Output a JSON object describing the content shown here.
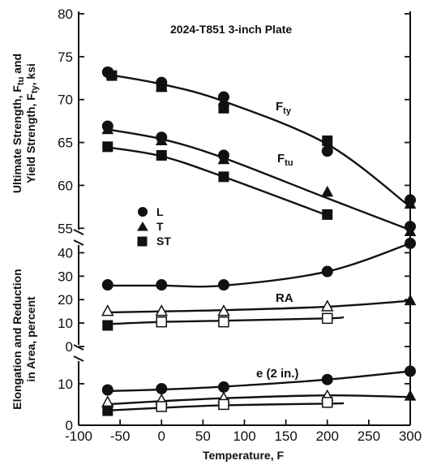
{
  "chart_data": {
    "type": "scatter",
    "title": "2024-T851 3-inch Plate",
    "xlabel": "Temperature, F",
    "x_ticks": [
      "-100",
      "-50",
      "0",
      "50",
      "100",
      "150",
      "200",
      "250",
      "300"
    ],
    "xlim": [
      -100,
      300
    ],
    "legend": {
      "placement": "left",
      "entries": [
        {
          "marker": "circle",
          "label": "L"
        },
        {
          "marker": "triangle",
          "label": "T"
        },
        {
          "marker": "square",
          "label": "ST"
        }
      ]
    },
    "panels": [
      {
        "name": "strength",
        "ylabel_lines": [
          "Ultimate Strength, F",
          "Yield Strength, F"
        ],
        "ylabel_parts": {
          "l1_main": "Ultimate Strength, F",
          "l1_sub": "tu",
          "l1_tail": " and",
          "l2_main": "Yield Strength, F",
          "l2_sub": "ty",
          "l2_tail": ", ksi"
        },
        "ylim": [
          52,
          80
        ],
        "y_ticks": [
          "55",
          "60",
          "65",
          "70",
          "75",
          "80"
        ],
        "curves": [
          {
            "name": "Fty",
            "label_main": "F",
            "label_sub": "ty",
            "x": [
              -70,
              0,
              75,
              200,
              300
            ],
            "y": [
              73.0,
              71.8,
              69.8,
              64.8,
              57.5
            ]
          },
          {
            "name": "Ftu",
            "label_main": "F",
            "label_sub": "tu",
            "x": [
              -70,
              0,
              75,
              200,
              300
            ],
            "y": [
              66.6,
              65.4,
              63.2,
              58.5,
              54.8
            ]
          },
          {
            "name": "",
            "x": [
              -70,
              0,
              75,
              200
            ],
            "y": [
              64.5,
              63.4,
              61.0,
              56.5
            ]
          }
        ],
        "points": [
          {
            "marker": "circle",
            "fill": "solid",
            "x": -65,
            "y": 73.2
          },
          {
            "marker": "circle",
            "fill": "solid",
            "x": 0,
            "y": 72.0
          },
          {
            "marker": "circle",
            "fill": "solid",
            "x": 75,
            "y": 70.3
          },
          {
            "marker": "circle",
            "fill": "solid",
            "x": 200,
            "y": 64.0
          },
          {
            "marker": "circle",
            "fill": "solid",
            "x": 300,
            "y": 58.3
          },
          {
            "marker": "triangle",
            "fill": "solid",
            "x": -60,
            "y": 73.0
          },
          {
            "marker": "triangle",
            "fill": "solid",
            "x": 0,
            "y": 71.5
          },
          {
            "marker": "triangle",
            "fill": "solid",
            "x": 75,
            "y": 69.8
          },
          {
            "marker": "triangle",
            "fill": "solid",
            "x": 300,
            "y": 57.8
          },
          {
            "marker": "square",
            "fill": "solid",
            "x": -60,
            "y": 72.8
          },
          {
            "marker": "square",
            "fill": "solid",
            "x": 0,
            "y": 71.5
          },
          {
            "marker": "square",
            "fill": "solid",
            "x": 75,
            "y": 69.0
          },
          {
            "marker": "square",
            "fill": "solid",
            "x": 200,
            "y": 65.2
          },
          {
            "marker": "circle",
            "fill": "solid",
            "x": -65,
            "y": 66.9
          },
          {
            "marker": "circle",
            "fill": "solid",
            "x": 0,
            "y": 65.6
          },
          {
            "marker": "circle",
            "fill": "solid",
            "x": 75,
            "y": 63.5
          },
          {
            "marker": "circle",
            "fill": "solid",
            "x": 300,
            "y": 55.2
          },
          {
            "marker": "triangle",
            "fill": "solid",
            "x": -65,
            "y": 66.5
          },
          {
            "marker": "triangle",
            "fill": "solid",
            "x": 0,
            "y": 65.2
          },
          {
            "marker": "triangle",
            "fill": "solid",
            "x": 75,
            "y": 63.0
          },
          {
            "marker": "triangle",
            "fill": "solid",
            "x": 200,
            "y": 59.2
          },
          {
            "marker": "triangle",
            "fill": "solid",
            "x": 300,
            "y": 54.6
          },
          {
            "marker": "square",
            "fill": "solid",
            "x": -65,
            "y": 64.5
          },
          {
            "marker": "square",
            "fill": "solid",
            "x": 0,
            "y": 63.5
          },
          {
            "marker": "square",
            "fill": "solid",
            "x": 75,
            "y": 61.0
          },
          {
            "marker": "square",
            "fill": "solid",
            "x": 200,
            "y": 56.6
          }
        ]
      },
      {
        "name": "elongation",
        "ylabel_lines": [
          "Elongation and Reduction",
          "in Area, percent"
        ],
        "ylim": [
          0,
          45
        ],
        "y_ticks": [
          "0",
          "10",
          "20",
          "30",
          "40"
        ],
        "curves": [
          {
            "name": "RA",
            "x": [
              -70,
              0,
              75,
              200,
              300
            ],
            "y": [
              26,
              26,
              26,
              32,
              44
            ]
          },
          {
            "name": "",
            "x": [
              -70,
              0,
              75,
              200,
              300
            ],
            "y": [
              14.5,
              15,
              15.5,
              17,
              19.5
            ]
          },
          {
            "name": "",
            "x": [
              -70,
              0,
              75,
              200,
              220
            ],
            "y": [
              9.5,
              10.5,
              11,
              12,
              12.5
            ]
          }
        ],
        "points": [
          {
            "marker": "circle",
            "fill": "solid",
            "x": -65,
            "y": 26.3
          },
          {
            "marker": "circle",
            "fill": "solid",
            "x": 0,
            "y": 26.3
          },
          {
            "marker": "circle",
            "fill": "solid",
            "x": 75,
            "y": 26.3
          },
          {
            "marker": "circle",
            "fill": "solid",
            "x": 200,
            "y": 32.0
          },
          {
            "marker": "circle",
            "fill": "solid",
            "x": 300,
            "y": 44.0
          },
          {
            "marker": "triangle",
            "fill": "open",
            "x": -65,
            "y": 15.0
          },
          {
            "marker": "triangle",
            "fill": "open",
            "x": 0,
            "y": 15.0
          },
          {
            "marker": "triangle",
            "fill": "open",
            "x": 75,
            "y": 15.0
          },
          {
            "marker": "triangle",
            "fill": "open",
            "x": 200,
            "y": 17.0
          },
          {
            "marker": "triangle",
            "fill": "solid",
            "x": 300,
            "y": 19.5
          },
          {
            "marker": "square",
            "fill": "solid",
            "x": -65,
            "y": 9.0
          },
          {
            "marker": "square",
            "fill": "open",
            "x": 0,
            "y": 10.5
          },
          {
            "marker": "square",
            "fill": "open",
            "x": 75,
            "y": 10.5
          },
          {
            "marker": "square",
            "fill": "open",
            "x": 200,
            "y": 12.0
          }
        ]
      },
      {
        "name": "elongation-2in",
        "ylim": [
          0,
          17
        ],
        "y_ticks": [
          "0",
          "10"
        ],
        "curves": [
          {
            "name": "e (2 in.)",
            "x": [
              -70,
              0,
              75,
              200,
              300
            ],
            "y": [
              8.2,
              8.6,
              9.3,
              11.0,
              13.0
            ]
          },
          {
            "name": "",
            "x": [
              -70,
              0,
              75,
              200,
              300
            ],
            "y": [
              5.0,
              5.8,
              6.5,
              7.2,
              6.8
            ]
          },
          {
            "name": "",
            "x": [
              -70,
              0,
              75,
              200,
              220
            ],
            "y": [
              3.5,
              4.2,
              4.8,
              5.2,
              5.3
            ]
          }
        ],
        "points": [
          {
            "marker": "circle",
            "fill": "solid",
            "x": -65,
            "y": 8.5
          },
          {
            "marker": "circle",
            "fill": "solid",
            "x": 0,
            "y": 8.8
          },
          {
            "marker": "circle",
            "fill": "solid",
            "x": 75,
            "y": 9.2
          },
          {
            "marker": "circle",
            "fill": "solid",
            "x": 200,
            "y": 11.0
          },
          {
            "marker": "circle",
            "fill": "solid",
            "x": 300,
            "y": 13.0
          },
          {
            "marker": "triangle",
            "fill": "open",
            "x": -65,
            "y": 5.5
          },
          {
            "marker": "triangle",
            "fill": "open",
            "x": 0,
            "y": 6.0
          },
          {
            "marker": "triangle",
            "fill": "open",
            "x": 75,
            "y": 6.5
          },
          {
            "marker": "triangle",
            "fill": "open",
            "x": 200,
            "y": 7.0
          },
          {
            "marker": "triangle",
            "fill": "solid",
            "x": 300,
            "y": 7.0
          },
          {
            "marker": "square",
            "fill": "solid",
            "x": -65,
            "y": 3.5
          },
          {
            "marker": "square",
            "fill": "open",
            "x": 0,
            "y": 4.5
          },
          {
            "marker": "square",
            "fill": "open",
            "x": 75,
            "y": 5.0
          },
          {
            "marker": "square",
            "fill": "open",
            "x": 200,
            "y": 5.5
          }
        ]
      }
    ]
  }
}
